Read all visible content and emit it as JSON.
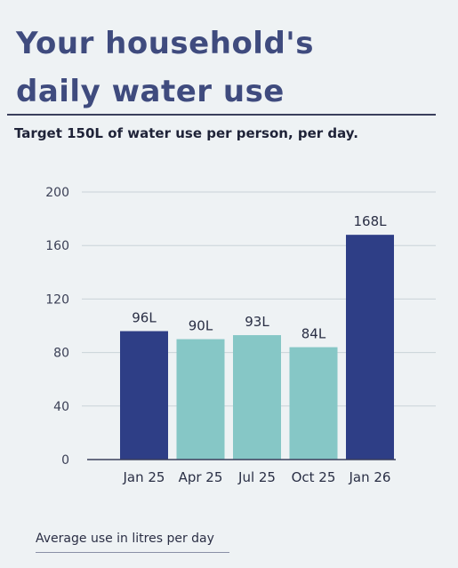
{
  "header": {
    "title_line1": "Your household's",
    "title_line2": "daily water use",
    "subtitle": "Target 150L of water use per person, per day."
  },
  "footnote": "Average use in litres per day",
  "colors": {
    "dark_bar": "#2e3e86",
    "light_bar": "#86c7c6",
    "axis": "#3a3f5c"
  },
  "chart_data": {
    "type": "bar",
    "categories": [
      "Jan 25",
      "Apr 25",
      "Jul 25",
      "Oct 25",
      "Jan 26"
    ],
    "values": [
      96,
      90,
      93,
      84,
      168
    ],
    "data_labels": [
      "96L",
      "90L",
      "93L",
      "84L",
      "168L"
    ],
    "bar_colors": [
      "#2e3e86",
      "#86c7c6",
      "#86c7c6",
      "#86c7c6",
      "#2e3e86"
    ],
    "yticks": [
      0,
      40,
      80,
      120,
      160,
      200
    ],
    "ylim": [
      0,
      200
    ],
    "xlabel": "",
    "ylabel": "",
    "grid": true
  }
}
